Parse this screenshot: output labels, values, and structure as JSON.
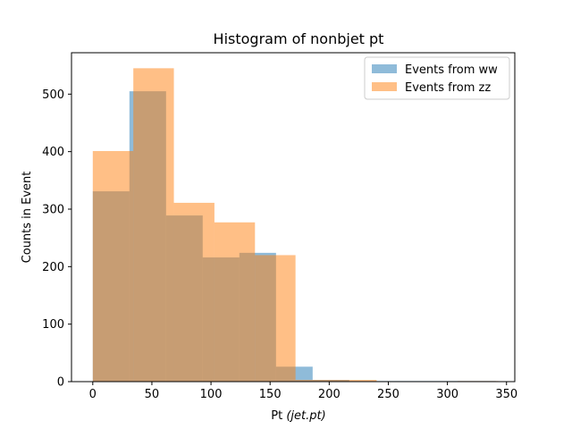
{
  "chart_data": {
    "type": "bar",
    "title": "Histogram of nonbjet pt",
    "xlabel": "Pt  ",
    "xlabel_math": "(jet.pt)",
    "ylabel": "Counts in Event",
    "xlim": [
      -18,
      357
    ],
    "ylim": [
      0,
      572
    ],
    "xticks": [
      0,
      50,
      100,
      150,
      200,
      250,
      300,
      350
    ],
    "yticks": [
      0,
      100,
      200,
      300,
      400,
      500
    ],
    "grid": false,
    "legend_position": "top-right",
    "series": [
      {
        "name": "Events from ww",
        "color": "#1f77b4",
        "alpha": 0.5,
        "bin_edges": [
          0,
          31,
          62,
          93,
          124,
          155,
          186,
          217,
          248,
          279,
          310,
          341
        ],
        "values": [
          331,
          505,
          289,
          216,
          224,
          26,
          3,
          1,
          1,
          1,
          1
        ]
      },
      {
        "name": "Events from zz",
        "color": "#ff7f0e",
        "alpha": 0.5,
        "bin_edges": [
          0,
          34.3,
          68.6,
          102.9,
          137.2,
          171.5,
          205.8,
          240.1,
          274.4,
          308.7,
          343
        ],
        "values": [
          401,
          545,
          311,
          277,
          220,
          3,
          3,
          0,
          0,
          1
        ]
      }
    ]
  }
}
